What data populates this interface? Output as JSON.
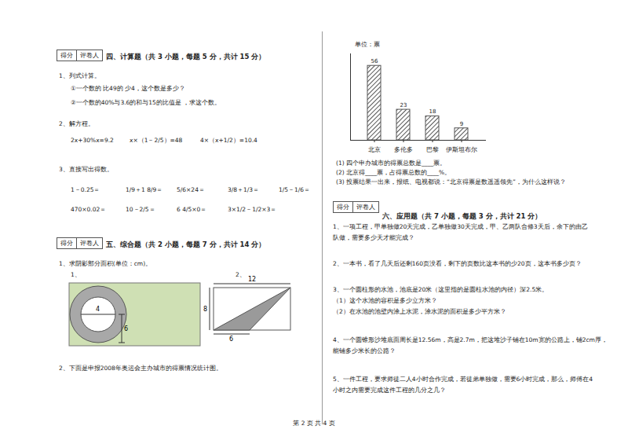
{
  "chart_data": {
    "type": "bar",
    "y_label": "单位：票",
    "categories": [
      "北京",
      "多伦多",
      "巴黎",
      "伊斯坦布尔"
    ],
    "values": [
      56,
      23,
      18,
      9
    ],
    "color": "#555555",
    "ylim": [
      0,
      65
    ],
    "data_labels": true,
    "tick_labels": "x"
  },
  "score_box": [
    "得分",
    "评卷人"
  ],
  "section4": {
    "heading": "四、计算题（共 3 小题，每题 5 分，共计 15 分）",
    "q1": {
      "stem": "1、列式计算。",
      "items": [
        "①一个数的 比49的 少4，这个数是多少？",
        "②一个数的40%与3.6的和与15的比值是 ，求这个数。"
      ]
    },
    "q2": {
      "stem": "2、解方程。",
      "items": [
        "2x+30%x=9.2",
        "x×（1－2/5）=48",
        "4×（x+1/2）=10.4"
      ]
    },
    "q3": {
      "stem": "3、直接写出得数。",
      "rows": [
        [
          "1－0.25＝",
          "1/9＋1 8/9＝",
          "5/6×24＝",
          "3/8＋1/3＝",
          "1/5－1/6＝"
        ],
        [
          "470×0.02＝",
          "10－2/5＝",
          "6 4/5×0＝",
          "3×1/2－1/2×3＝"
        ]
      ]
    }
  },
  "section5": {
    "heading": "五、综合题（共 2 小题，每题 7 分，共计 14 分）",
    "q1": {
      "stem": "1、求阴影部分面积(单位：cm)。",
      "figure1": {
        "label": "1、",
        "dims": [
          "4",
          "6"
        ]
      },
      "figure2": {
        "label": "2、",
        "dims": [
          "12",
          "8",
          "6"
        ]
      }
    },
    "q2": {
      "stem": "2、下面是申报2008年奥运会主办城市的得票情况统计图。",
      "questions": [
        "(1) 四个申办城市的得票总数是____票。",
        "(2) 北京得____票，占得票总数的____%。",
        "(3) 投票结果一出来，报纸、电视都说：“北京得票是数遥遥领先”，为什么这样说？"
      ]
    }
  },
  "section6": {
    "heading": "六、应用题（共 7 小题，每题 3 分，共计 21 分）",
    "questions": [
      [
        "1、一项工程，甲单独做20天完成，乙单独做30天完成，甲、乙两队合修3天后，余下的由乙",
        "队做，需要多少天才能完成？"
      ],
      [
        "2、一本书，看了几天后还剩160页没看，剩下的页数比这本书的少20页，这本书多少页？"
      ],
      [
        "3、一个圆柱形的水池，池底是20米（这里指的是圆柱水池的内径）深2.5米。",
        "（1）这个水池的容积是多少立方米？",
        "（2）在水池的池壁内涂上水泥，涂水泥的面积是多少平方米？"
      ],
      [
        "4、一个圆锥形沙堆底面周长是12.56m，高是2.7m，把这堆沙子铺在10m宽的公路上，铺2cm厚，",
        "能铺多少米长的公路？"
      ],
      [
        "5、一件工程，要求师徒二人4小时合作完成，若徒弟单独做，需要6小时完成，那么，师傅在4",
        "小时之内需要完成这件工程的几分之几？"
      ]
    ]
  },
  "footer": "第 2 页 共 4 页"
}
